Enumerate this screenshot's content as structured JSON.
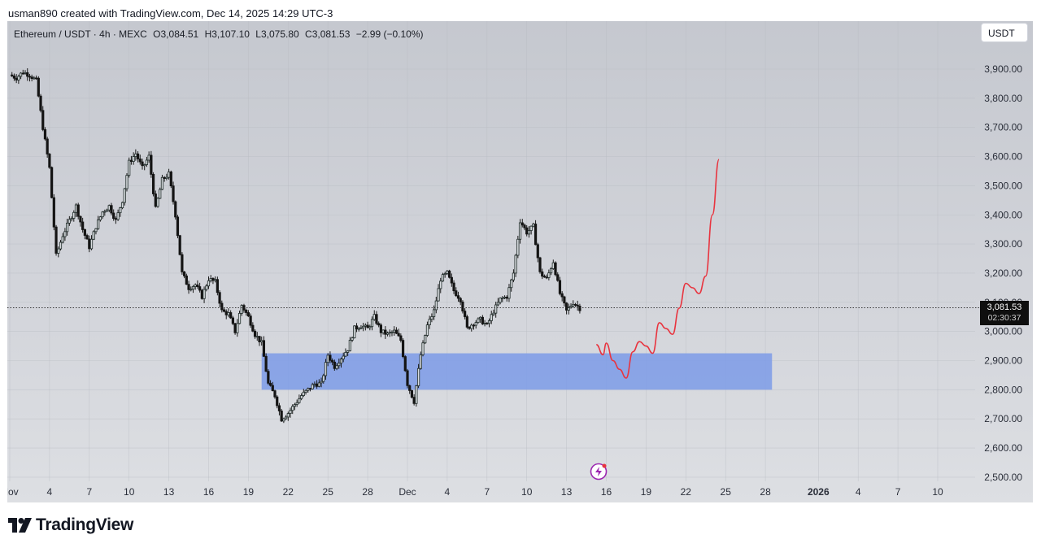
{
  "header": {
    "credit": "usman890 created with TradingView.com, Dec 14, 2025 14:29 UTC-3"
  },
  "legend": {
    "symbol": "Ethereum / USDT · 4h · MEXC",
    "open": "O3,084.51",
    "high": "H3,107.10",
    "low": "L3,075.80",
    "close": "C3,081.53",
    "change": "−2.99 (−0.10%)"
  },
  "currency_button": "USDT",
  "price_tag": {
    "price": "3,081.53",
    "countdown": "02:30:37"
  },
  "brand": {
    "name": "TradingView",
    "icon": "tradingview-logo-icon"
  },
  "marker_icon": "lightning-icon",
  "colors": {
    "bull": "#1e2a28",
    "bear": "#141414",
    "zone": "#7d9be8",
    "projection": "#e8343f",
    "grid": "#b7bac2",
    "background": "#cfd2d8"
  },
  "chart_data": {
    "type": "candlestick",
    "symbol": "ETH/USDT",
    "timeframe": "4h",
    "y_ticks": [
      "3,900.00",
      "3,800.00",
      "3,700.00",
      "3,600.00",
      "3,500.00",
      "3,400.00",
      "3,300.00",
      "3,200.00",
      "3,100.00",
      "3,000.00",
      "2,900.00",
      "2,800.00",
      "2,700.00",
      "2,600.00",
      "2,500.00"
    ],
    "x_ticks": [
      {
        "label": "Nov",
        "date": "2025-11-01"
      },
      {
        "label": "4",
        "date": "2025-11-04"
      },
      {
        "label": "7",
        "date": "2025-11-07"
      },
      {
        "label": "10",
        "date": "2025-11-10"
      },
      {
        "label": "13",
        "date": "2025-11-13"
      },
      {
        "label": "16",
        "date": "2025-11-16"
      },
      {
        "label": "19",
        "date": "2025-11-19"
      },
      {
        "label": "22",
        "date": "2025-11-22"
      },
      {
        "label": "25",
        "date": "2025-11-25"
      },
      {
        "label": "28",
        "date": "2025-11-28"
      },
      {
        "label": "Dec",
        "date": "2025-12-01"
      },
      {
        "label": "4",
        "date": "2025-12-04"
      },
      {
        "label": "7",
        "date": "2025-12-07"
      },
      {
        "label": "10",
        "date": "2025-12-10"
      },
      {
        "label": "13",
        "date": "2025-12-13"
      },
      {
        "label": "16",
        "date": "2025-12-16"
      },
      {
        "label": "19",
        "date": "2025-12-19"
      },
      {
        "label": "22",
        "date": "2025-12-22"
      },
      {
        "label": "25",
        "date": "2025-12-25"
      },
      {
        "label": "28",
        "date": "2025-12-28"
      },
      {
        "label": "2026",
        "date": "2026-01-01",
        "bold": true
      },
      {
        "label": "4",
        "date": "2026-01-04"
      },
      {
        "label": "7",
        "date": "2026-01-07"
      },
      {
        "label": "10",
        "date": "2026-01-10"
      }
    ],
    "price_anchors": [
      {
        "x": "2025-11-01",
        "y": 3880
      },
      {
        "x": "2025-11-01T12:00",
        "y": 3870
      },
      {
        "x": "2025-11-02",
        "y": 3890
      },
      {
        "x": "2025-11-02T12:00",
        "y": 3880
      },
      {
        "x": "2025-11-03",
        "y": 3860
      },
      {
        "x": "2025-11-03T12:00",
        "y": 3700
      },
      {
        "x": "2025-11-04",
        "y": 3560
      },
      {
        "x": "2025-11-04T12:00",
        "y": 3260
      },
      {
        "x": "2025-11-05",
        "y": 3330
      },
      {
        "x": "2025-11-05T12:00",
        "y": 3380
      },
      {
        "x": "2025-11-06",
        "y": 3430
      },
      {
        "x": "2025-11-06T12:00",
        "y": 3350
      },
      {
        "x": "2025-11-07",
        "y": 3290
      },
      {
        "x": "2025-11-07T12:00",
        "y": 3360
      },
      {
        "x": "2025-11-08",
        "y": 3410
      },
      {
        "x": "2025-11-08T12:00",
        "y": 3430
      },
      {
        "x": "2025-11-09",
        "y": 3380
      },
      {
        "x": "2025-11-09T12:00",
        "y": 3450
      },
      {
        "x": "2025-11-10",
        "y": 3580
      },
      {
        "x": "2025-11-10T12:00",
        "y": 3610
      },
      {
        "x": "2025-11-11",
        "y": 3560
      },
      {
        "x": "2025-11-11T12:00",
        "y": 3600
      },
      {
        "x": "2025-11-12",
        "y": 3420
      },
      {
        "x": "2025-11-12T12:00",
        "y": 3520
      },
      {
        "x": "2025-11-13",
        "y": 3540
      },
      {
        "x": "2025-11-13T12:00",
        "y": 3400
      },
      {
        "x": "2025-11-14",
        "y": 3200
      },
      {
        "x": "2025-11-14T12:00",
        "y": 3150
      },
      {
        "x": "2025-11-15",
        "y": 3160
      },
      {
        "x": "2025-11-15T12:00",
        "y": 3120
      },
      {
        "x": "2025-11-16",
        "y": 3180
      },
      {
        "x": "2025-11-16T12:00",
        "y": 3170
      },
      {
        "x": "2025-11-17",
        "y": 3070
      },
      {
        "x": "2025-11-17T12:00",
        "y": 3060
      },
      {
        "x": "2025-11-18",
        "y": 3000
      },
      {
        "x": "2025-11-18T12:00",
        "y": 3090
      },
      {
        "x": "2025-11-19",
        "y": 3050
      },
      {
        "x": "2025-11-19T12:00",
        "y": 2990
      },
      {
        "x": "2025-11-20",
        "y": 2960
      },
      {
        "x": "2025-11-20T12:00",
        "y": 2820
      },
      {
        "x": "2025-11-21",
        "y": 2780
      },
      {
        "x": "2025-11-21T12:00",
        "y": 2700
      },
      {
        "x": "2025-11-22",
        "y": 2720
      },
      {
        "x": "2025-11-22T12:00",
        "y": 2750
      },
      {
        "x": "2025-11-23",
        "y": 2780
      },
      {
        "x": "2025-11-23T12:00",
        "y": 2800
      },
      {
        "x": "2025-11-24",
        "y": 2820
      },
      {
        "x": "2025-11-24T12:00",
        "y": 2820
      },
      {
        "x": "2025-11-25",
        "y": 2920
      },
      {
        "x": "2025-11-25T12:00",
        "y": 2880
      },
      {
        "x": "2025-11-26",
        "y": 2910
      },
      {
        "x": "2025-11-26T12:00",
        "y": 2940
      },
      {
        "x": "2025-11-27",
        "y": 3010
      },
      {
        "x": "2025-11-27T12:00",
        "y": 3020
      },
      {
        "x": "2025-11-28",
        "y": 3010
      },
      {
        "x": "2025-11-28T12:00",
        "y": 3050
      },
      {
        "x": "2025-11-29",
        "y": 3000
      },
      {
        "x": "2025-11-29T12:00",
        "y": 2990
      },
      {
        "x": "2025-11-30",
        "y": 3000
      },
      {
        "x": "2025-11-30T12:00",
        "y": 2970
      },
      {
        "x": "2025-12-01",
        "y": 2820
      },
      {
        "x": "2025-12-01T12:00",
        "y": 2760
      },
      {
        "x": "2025-12-02",
        "y": 2920
      },
      {
        "x": "2025-12-02T12:00",
        "y": 3020
      },
      {
        "x": "2025-12-03",
        "y": 3070
      },
      {
        "x": "2025-12-03T12:00",
        "y": 3180
      },
      {
        "x": "2025-12-04",
        "y": 3200
      },
      {
        "x": "2025-12-04T12:00",
        "y": 3140
      },
      {
        "x": "2025-12-05",
        "y": 3110
      },
      {
        "x": "2025-12-05T12:00",
        "y": 3010
      },
      {
        "x": "2025-12-06",
        "y": 3030
      },
      {
        "x": "2025-12-06T12:00",
        "y": 3040
      },
      {
        "x": "2025-12-07",
        "y": 3020
      },
      {
        "x": "2025-12-07T12:00",
        "y": 3070
      },
      {
        "x": "2025-12-08",
        "y": 3110
      },
      {
        "x": "2025-12-08T12:00",
        "y": 3120
      },
      {
        "x": "2025-12-09",
        "y": 3200
      },
      {
        "x": "2025-12-09T12:00",
        "y": 3380
      },
      {
        "x": "2025-12-10",
        "y": 3340
      },
      {
        "x": "2025-12-10T12:00",
        "y": 3360
      },
      {
        "x": "2025-12-11",
        "y": 3200
      },
      {
        "x": "2025-12-11T12:00",
        "y": 3180
      },
      {
        "x": "2025-12-12",
        "y": 3240
      },
      {
        "x": "2025-12-12T12:00",
        "y": 3130
      },
      {
        "x": "2025-12-13",
        "y": 3070
      },
      {
        "x": "2025-12-13T12:00",
        "y": 3100
      },
      {
        "x": "2025-12-14",
        "y": 3080
      }
    ],
    "demand_zone": {
      "from": "2025-11-20",
      "to": "2025-12-28T12:00",
      "low": 2800,
      "high": 2925
    },
    "projection": [
      {
        "x": "2025-12-15T06:00",
        "y": 2955
      },
      {
        "x": "2025-12-15T18:00",
        "y": 2920
      },
      {
        "x": "2025-12-16",
        "y": 2960
      },
      {
        "x": "2025-12-16T12:00",
        "y": 2900
      },
      {
        "x": "2025-12-17",
        "y": 2870
      },
      {
        "x": "2025-12-17T12:00",
        "y": 2840
      },
      {
        "x": "2025-12-18",
        "y": 2930
      },
      {
        "x": "2025-12-18T12:00",
        "y": 2965
      },
      {
        "x": "2025-12-19",
        "y": 2950
      },
      {
        "x": "2025-12-19T12:00",
        "y": 2925
      },
      {
        "x": "2025-12-20",
        "y": 3030
      },
      {
        "x": "2025-12-20T12:00",
        "y": 3010
      },
      {
        "x": "2025-12-21",
        "y": 2990
      },
      {
        "x": "2025-12-21T12:00",
        "y": 3080
      },
      {
        "x": "2025-12-22",
        "y": 3165
      },
      {
        "x": "2025-12-22T12:00",
        "y": 3150
      },
      {
        "x": "2025-12-23",
        "y": 3130
      },
      {
        "x": "2025-12-23T12:00",
        "y": 3190
      },
      {
        "x": "2025-12-24",
        "y": 3400
      },
      {
        "x": "2025-12-24T12:00",
        "y": 3590
      }
    ],
    "current_price": 3081.53
  }
}
